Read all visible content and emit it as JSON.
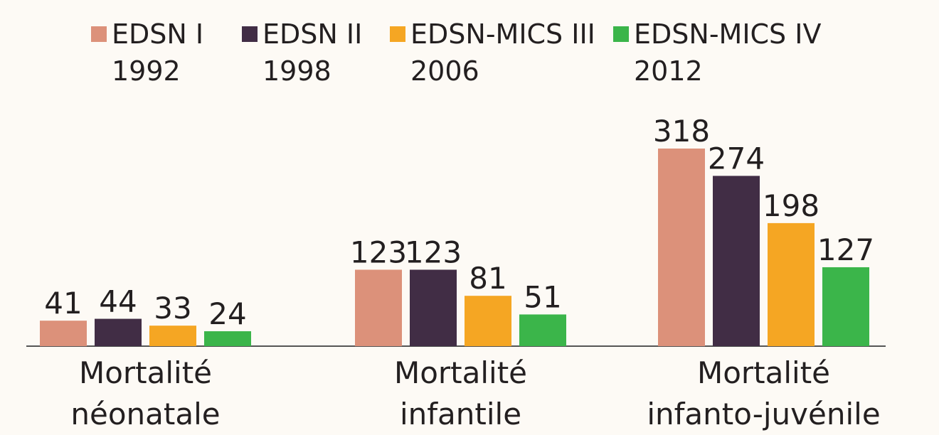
{
  "chart_data": {
    "type": "bar",
    "categories": [
      "Mortalité\nnéonatale",
      "Mortalité\ninfantile",
      "Mortalité\ninfanto-juvénile"
    ],
    "series": [
      {
        "name": "EDSN I\n1992",
        "color": "#dc917a",
        "values": [
          41,
          123,
          318
        ]
      },
      {
        "name": "EDSN II\n1998",
        "color": "#412d45",
        "values": [
          44,
          123,
          274
        ]
      },
      {
        "name": "EDSN-MICS III\n2006",
        "color": "#f5a623",
        "values": [
          33,
          81,
          198
        ]
      },
      {
        "name": "EDSN-MICS IV\n2012",
        "color": "#3bb54a",
        "values": [
          24,
          51,
          127
        ]
      }
    ],
    "ylim": [
      0,
      350
    ]
  }
}
